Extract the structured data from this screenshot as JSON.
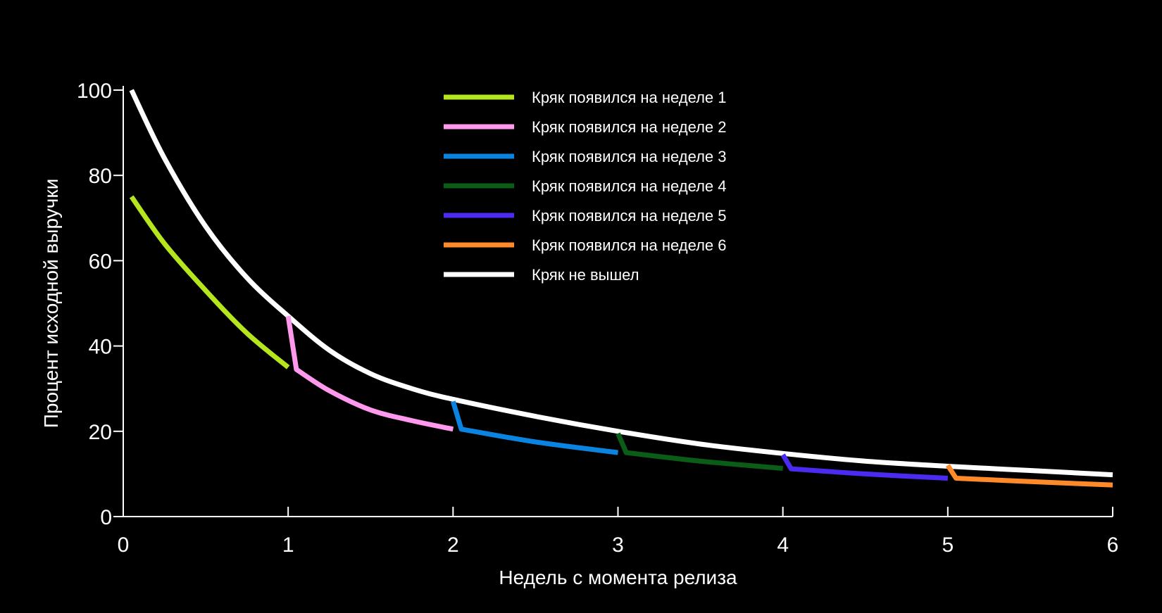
{
  "chart_data": {
    "type": "line",
    "title": "",
    "xlabel": "Недель с момента релиза",
    "ylabel": "Процент исходной выручки",
    "xlim": [
      0,
      6
    ],
    "ylim": [
      0,
      100
    ],
    "x_ticks": [
      0,
      1,
      2,
      3,
      4,
      5,
      6
    ],
    "x_tick_labels": [
      "0",
      "1",
      "2",
      "3",
      "4",
      "5",
      "6"
    ],
    "y_ticks": [
      0,
      20,
      40,
      60,
      80,
      100
    ],
    "y_tick_labels": [
      "0",
      "20",
      "40",
      "60",
      "80",
      "100"
    ],
    "grid": false,
    "legend_position": "top-center",
    "series": [
      {
        "name": "Кряк появился на неделе 1",
        "color": "#b5e61d",
        "x": [
          0.05,
          0.25,
          0.5,
          0.75,
          1.0
        ],
        "y": [
          75,
          64,
          53,
          43,
          35
        ]
      },
      {
        "name": "Кряк появился на неделе 2",
        "color": "#ff99ee",
        "x": [
          1.0,
          1.05,
          1.25,
          1.5,
          1.75,
          2.0
        ],
        "y": [
          47,
          34.5,
          29.5,
          25,
          22.5,
          20.5
        ]
      },
      {
        "name": "Кряк появился на неделе 3",
        "color": "#0a84e0",
        "x": [
          2.0,
          2.05,
          2.5,
          3.0
        ],
        "y": [
          27,
          20.5,
          17.5,
          15
        ]
      },
      {
        "name": "Кряк появился на неделе 4",
        "color": "#0a5c16",
        "x": [
          3.0,
          3.05,
          3.5,
          4.0
        ],
        "y": [
          19.5,
          15,
          13,
          11.3
        ]
      },
      {
        "name": "Кряк появился на неделе 5",
        "color": "#4a2cf0",
        "x": [
          4.0,
          4.05,
          4.5,
          5.0
        ],
        "y": [
          14.5,
          11.2,
          10,
          9
        ]
      },
      {
        "name": "Кряк появился на неделе 6",
        "color": "#ff8a2a",
        "x": [
          5.0,
          5.05,
          5.5,
          6.0
        ],
        "y": [
          12,
          9,
          8.2,
          7.4
        ]
      },
      {
        "name": "Кряк не вышел",
        "color": "#ffffff",
        "x": [
          0.05,
          0.25,
          0.5,
          0.75,
          1.0,
          1.25,
          1.5,
          1.75,
          2.0,
          2.5,
          3.0,
          3.5,
          4.0,
          4.5,
          5.0,
          5.5,
          6.0
        ],
        "y": [
          100,
          84,
          68,
          56,
          47,
          39,
          33.5,
          30,
          27.5,
          23.5,
          20,
          17,
          14.8,
          13,
          11.8,
          10.8,
          9.8
        ]
      }
    ]
  }
}
